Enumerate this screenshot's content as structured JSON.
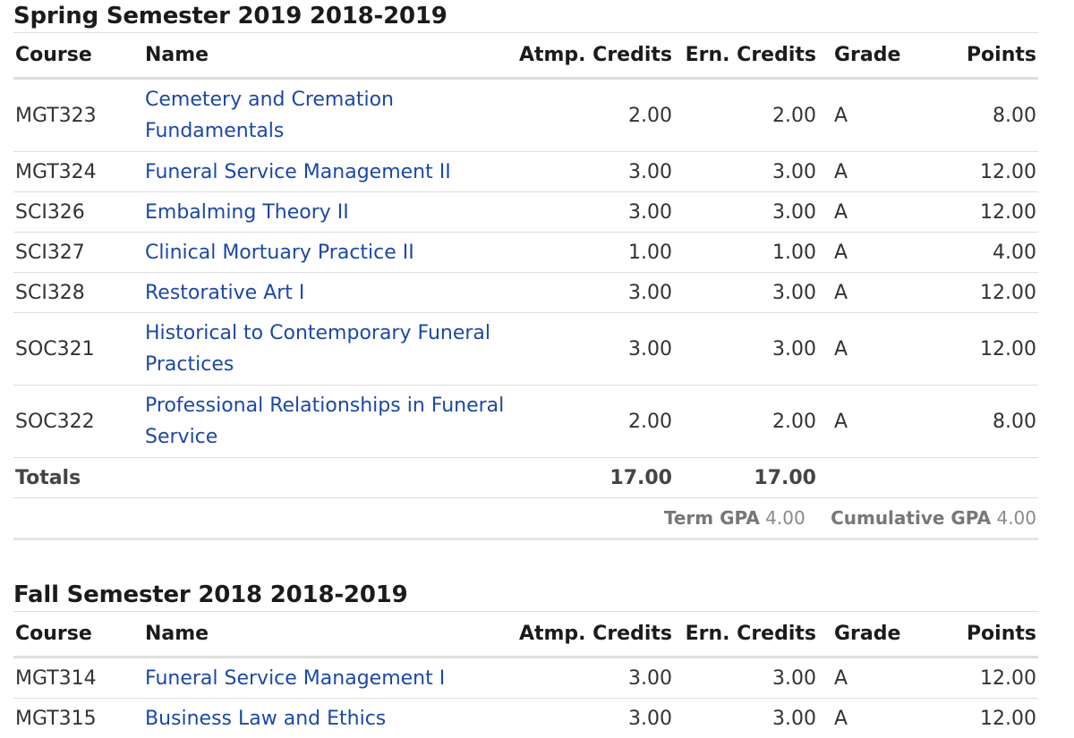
{
  "columns": {
    "course": "Course",
    "name": "Name",
    "atmp": "Atmp. Credits",
    "ern": "Ern. Credits",
    "grade": "Grade",
    "points": "Points"
  },
  "terms": [
    {
      "title": "Spring Semester 2019 2018-2019",
      "rows": [
        {
          "course": "MGT323",
          "name": "Cemetery and Cremation Fundamentals",
          "atmp": "2.00",
          "ern": "2.00",
          "grade": "A",
          "points": "8.00"
        },
        {
          "course": "MGT324",
          "name": "Funeral Service Management II",
          "atmp": "3.00",
          "ern": "3.00",
          "grade": "A",
          "points": "12.00"
        },
        {
          "course": "SCI326",
          "name": "Embalming Theory II",
          "atmp": "3.00",
          "ern": "3.00",
          "grade": "A",
          "points": "12.00"
        },
        {
          "course": "SCI327",
          "name": "Clinical Mortuary Practice II",
          "atmp": "1.00",
          "ern": "1.00",
          "grade": "A",
          "points": "4.00"
        },
        {
          "course": "SCI328",
          "name": "Restorative Art I",
          "atmp": "3.00",
          "ern": "3.00",
          "grade": "A",
          "points": "12.00"
        },
        {
          "course": "SOC321",
          "name": "Historical to Contemporary Funeral Practices",
          "atmp": "3.00",
          "ern": "3.00",
          "grade": "A",
          "points": "12.00"
        },
        {
          "course": "SOC322",
          "name": "Professional Relationships in Funeral Service",
          "atmp": "2.00",
          "ern": "2.00",
          "grade": "A",
          "points": "8.00"
        }
      ],
      "totals": {
        "label": "Totals",
        "atmp": "17.00",
        "ern": "17.00"
      },
      "gpa": {
        "term_label": "Term GPA",
        "term_value": "4.00",
        "cum_label": "Cumulative GPA",
        "cum_value": "4.00"
      }
    },
    {
      "title": "Fall Semester 2018 2018-2019",
      "rows": [
        {
          "course": "MGT314",
          "name": "Funeral Service Management I",
          "atmp": "3.00",
          "ern": "3.00",
          "grade": "A",
          "points": "12.00"
        },
        {
          "course": "MGT315",
          "name": "Business Law and Ethics",
          "atmp": "3.00",
          "ern": "3.00",
          "grade": "A",
          "points": "12.00"
        }
      ]
    }
  ]
}
